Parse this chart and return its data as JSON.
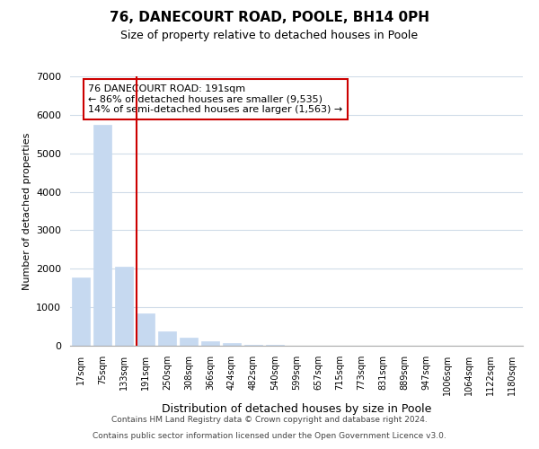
{
  "title": "76, DANECOURT ROAD, POOLE, BH14 0PH",
  "subtitle": "Size of property relative to detached houses in Poole",
  "xlabel": "Distribution of detached houses by size in Poole",
  "ylabel": "Number of detached properties",
  "bar_labels": [
    "17sqm",
    "75sqm",
    "133sqm",
    "191sqm",
    "250sqm",
    "308sqm",
    "366sqm",
    "424sqm",
    "482sqm",
    "540sqm",
    "599sqm",
    "657sqm",
    "715sqm",
    "773sqm",
    "831sqm",
    "889sqm",
    "947sqm",
    "1006sqm",
    "1064sqm",
    "1122sqm",
    "1180sqm"
  ],
  "bar_values": [
    1780,
    5740,
    2050,
    830,
    370,
    220,
    110,
    60,
    30,
    20,
    10,
    0,
    0,
    0,
    0,
    0,
    0,
    0,
    0,
    0,
    0
  ],
  "bar_color": "#c6d9f0",
  "vline_x_idx": 3,
  "vline_color": "#cc0000",
  "ylim": [
    0,
    7000
  ],
  "yticks": [
    0,
    1000,
    2000,
    3000,
    4000,
    5000,
    6000,
    7000
  ],
  "annotation_title": "76 DANECOURT ROAD: 191sqm",
  "annotation_line1": "← 86% of detached houses are smaller (9,535)",
  "annotation_line2": "14% of semi-detached houses are larger (1,563) →",
  "annotation_box_color": "#ffffff",
  "annotation_box_edge": "#cc0000",
  "footer_line1": "Contains HM Land Registry data © Crown copyright and database right 2024.",
  "footer_line2": "Contains public sector information licensed under the Open Government Licence v3.0.",
  "bg_color": "#ffffff",
  "grid_color": "#d0dce8"
}
